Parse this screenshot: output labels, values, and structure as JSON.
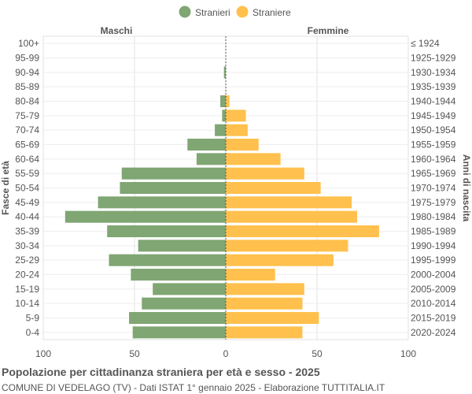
{
  "chart_data": {
    "type": "bar",
    "orientation": "horizontal-pyramid",
    "legend": [
      {
        "name": "Stranieri",
        "color": "#7fa673"
      },
      {
        "name": "Straniere",
        "color": "#ffc04d"
      }
    ],
    "legend_position": "top-center",
    "left_header": "Maschi",
    "right_header": "Femmine",
    "ylabel_left": "Fasce di età",
    "ylabel_right": "Anni di nascita",
    "xlim": [
      -100,
      100
    ],
    "xticks": [
      {
        "value": -100,
        "label": "100"
      },
      {
        "value": -50,
        "label": "50"
      },
      {
        "value": 0,
        "label": "0"
      },
      {
        "value": 50,
        "label": "50"
      },
      {
        "value": 100,
        "label": "100"
      }
    ],
    "grid": true,
    "age_groups": [
      "100+",
      "95-99",
      "90-94",
      "85-89",
      "80-84",
      "75-79",
      "70-74",
      "65-69",
      "60-64",
      "55-59",
      "50-54",
      "45-49",
      "40-44",
      "35-39",
      "30-34",
      "25-29",
      "20-24",
      "15-19",
      "10-14",
      "5-9",
      "0-4"
    ],
    "birth_years": [
      "≤ 1924",
      "1925-1929",
      "1930-1934",
      "1935-1939",
      "1940-1944",
      "1945-1949",
      "1950-1954",
      "1955-1959",
      "1960-1964",
      "1965-1969",
      "1970-1974",
      "1975-1979",
      "1980-1984",
      "1985-1989",
      "1990-1994",
      "1995-1999",
      "2000-2004",
      "2005-2009",
      "2010-2014",
      "2015-2019",
      "2020-2024"
    ],
    "series": [
      {
        "name": "Stranieri",
        "values": [
          0,
          0,
          1,
          0,
          3,
          2,
          6,
          21,
          16,
          57,
          58,
          70,
          88,
          65,
          48,
          64,
          52,
          40,
          46,
          53,
          51
        ]
      },
      {
        "name": "Straniere",
        "values": [
          0,
          0,
          0,
          0,
          2,
          11,
          12,
          18,
          30,
          43,
          52,
          69,
          72,
          84,
          67,
          59,
          27,
          43,
          42,
          51,
          42
        ]
      }
    ]
  },
  "caption": {
    "title": "Popolazione per cittadinanza straniera per età e sesso - 2025",
    "subtitle": "COMUNE DI VEDELAGO (TV) - Dati ISTAT 1° gennaio 2025 - Elaborazione TUTTITALIA.IT"
  }
}
